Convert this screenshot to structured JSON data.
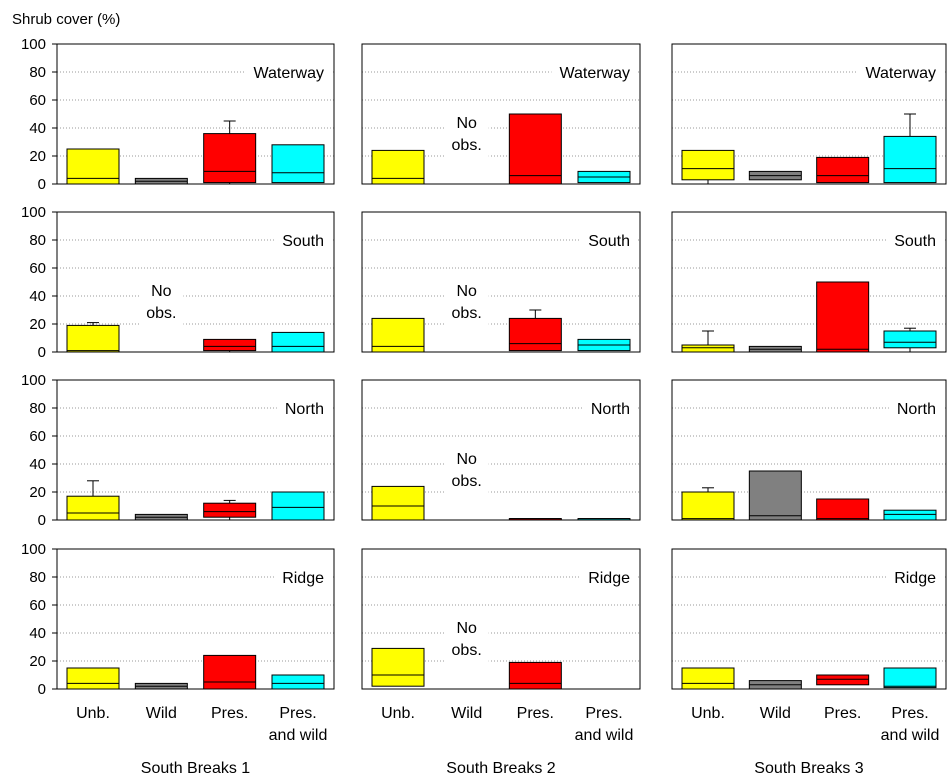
{
  "chart_data": {
    "type": "box",
    "ylabel": "Shrub cover (%)",
    "ylim": [
      0,
      100
    ],
    "yticks": [
      0,
      20,
      40,
      60,
      80,
      100
    ],
    "categories": [
      "Unb.",
      "Wild",
      "Pres.",
      "Pres. and wild"
    ],
    "category_lines": [
      [
        "Unb."
      ],
      [
        "Wild"
      ],
      [
        "Pres."
      ],
      [
        "Pres.",
        "and wild"
      ]
    ],
    "groups": [
      "South Breaks 1",
      "South Breaks 2",
      "South Breaks 3"
    ],
    "aspects": [
      "Waterway",
      "South",
      "North",
      "Ridge"
    ],
    "no_obs_label": [
      "No",
      "obs."
    ],
    "colors": {
      "Unb.": "#ffff00",
      "Wild": "#808080",
      "Pres.": "#ff0000",
      "Pres. and wild": "#00ffff"
    },
    "panels": [
      {
        "group": "South Breaks 1",
        "aspect": "Waterway",
        "boxes": [
          {
            "category": "Unb.",
            "q1": 0,
            "median": 4,
            "q3": 25
          },
          {
            "category": "Wild",
            "q1": 0,
            "median": 2,
            "q3": 4
          },
          {
            "category": "Pres.",
            "q1": 1,
            "median": 9,
            "q3": 36,
            "whisker_low": 0,
            "whisker_high": 45
          },
          {
            "category": "Pres. and wild",
            "q1": 1,
            "median": 8,
            "q3": 28
          }
        ]
      },
      {
        "group": "South Breaks 2",
        "aspect": "Waterway",
        "boxes": [
          {
            "category": "Unb.",
            "q1": 0,
            "median": 4,
            "q3": 24
          },
          {
            "category": "Wild",
            "no_obs": true
          },
          {
            "category": "Pres.",
            "q1": 0,
            "median": 6,
            "q3": 50
          },
          {
            "category": "Pres. and wild",
            "q1": 1,
            "median": 5,
            "q3": 9
          }
        ]
      },
      {
        "group": "South Breaks 3",
        "aspect": "Waterway",
        "boxes": [
          {
            "category": "Unb.",
            "q1": 3,
            "median": 11,
            "q3": 24,
            "whisker_low": 0
          },
          {
            "category": "Wild",
            "q1": 3,
            "median": 6,
            "q3": 9
          },
          {
            "category": "Pres.",
            "q1": 1,
            "median": 6,
            "q3": 19
          },
          {
            "category": "Pres. and wild",
            "q1": 1,
            "median": 11,
            "q3": 34,
            "whisker_high": 50
          }
        ]
      },
      {
        "group": "South Breaks 1",
        "aspect": "South",
        "boxes": [
          {
            "category": "Unb.",
            "q1": 0,
            "median": 1,
            "q3": 19,
            "whisker_high": 21
          },
          {
            "category": "Wild",
            "no_obs": true
          },
          {
            "category": "Pres.",
            "q1": 1,
            "median": 4,
            "q3": 9,
            "whisker_low": 0
          },
          {
            "category": "Pres. and wild",
            "q1": 0,
            "median": 4,
            "q3": 14
          }
        ]
      },
      {
        "group": "South Breaks 2",
        "aspect": "South",
        "boxes": [
          {
            "category": "Unb.",
            "q1": 0,
            "median": 4,
            "q3": 24
          },
          {
            "category": "Wild",
            "no_obs": true
          },
          {
            "category": "Pres.",
            "q1": 1,
            "median": 6,
            "q3": 24,
            "whisker_high": 30
          },
          {
            "category": "Pres. and wild",
            "q1": 1,
            "median": 5,
            "q3": 9
          }
        ]
      },
      {
        "group": "South Breaks 3",
        "aspect": "South",
        "boxes": [
          {
            "category": "Unb.",
            "q1": 0,
            "median": 3,
            "q3": 5,
            "whisker_high": 15
          },
          {
            "category": "Wild",
            "q1": 0,
            "median": 2,
            "q3": 4
          },
          {
            "category": "Pres.",
            "q1": 0,
            "median": 2,
            "q3": 50
          },
          {
            "category": "Pres. and wild",
            "q1": 3,
            "median": 7,
            "q3": 15,
            "whisker_low": 0,
            "whisker_high": 17
          }
        ]
      },
      {
        "group": "South Breaks 1",
        "aspect": "North",
        "boxes": [
          {
            "category": "Unb.",
            "q1": 0,
            "median": 5,
            "q3": 17,
            "whisker_high": 28
          },
          {
            "category": "Wild",
            "q1": 0,
            "median": 2,
            "q3": 4
          },
          {
            "category": "Pres.",
            "q1": 2,
            "median": 6,
            "q3": 12,
            "whisker_low": 0,
            "whisker_high": 14
          },
          {
            "category": "Pres. and wild",
            "q1": 0,
            "median": 9,
            "q3": 20
          }
        ]
      },
      {
        "group": "South Breaks 2",
        "aspect": "North",
        "boxes": [
          {
            "category": "Unb.",
            "q1": 0,
            "median": 10,
            "q3": 24
          },
          {
            "category": "Wild",
            "no_obs": true
          },
          {
            "category": "Pres.",
            "q1": 0,
            "median": 1,
            "q3": 1
          },
          {
            "category": "Pres. and wild",
            "q1": 0,
            "median": 1,
            "q3": 1
          }
        ]
      },
      {
        "group": "South Breaks 3",
        "aspect": "North",
        "boxes": [
          {
            "category": "Unb.",
            "q1": 0,
            "median": 1,
            "q3": 20,
            "whisker_high": 23
          },
          {
            "category": "Wild",
            "q1": 0,
            "median": 3,
            "q3": 35
          },
          {
            "category": "Pres.",
            "q1": 0,
            "median": 1,
            "q3": 15
          },
          {
            "category": "Pres. and wild",
            "q1": 0,
            "median": 4,
            "q3": 7
          }
        ]
      },
      {
        "group": "South Breaks 1",
        "aspect": "Ridge",
        "boxes": [
          {
            "category": "Unb.",
            "q1": 0,
            "median": 4,
            "q3": 15
          },
          {
            "category": "Wild",
            "q1": 0,
            "median": 2,
            "q3": 4
          },
          {
            "category": "Pres.",
            "q1": 0,
            "median": 5,
            "q3": 24
          },
          {
            "category": "Pres. and wild",
            "q1": 0,
            "median": 4,
            "q3": 10
          }
        ]
      },
      {
        "group": "South Breaks 2",
        "aspect": "Ridge",
        "boxes": [
          {
            "category": "Unb.",
            "q1": 2,
            "median": 10,
            "q3": 29
          },
          {
            "category": "Wild",
            "no_obs": true
          },
          {
            "category": "Pres.",
            "q1": 0,
            "median": 4,
            "q3": 19
          }
        ]
      },
      {
        "group": "South Breaks 3",
        "aspect": "Ridge",
        "boxes": [
          {
            "category": "Unb.",
            "q1": 0,
            "median": 4,
            "q3": 15
          },
          {
            "category": "Wild",
            "q1": 0,
            "median": 3,
            "q3": 6
          },
          {
            "category": "Pres.",
            "q1": 3,
            "median": 7,
            "q3": 10
          },
          {
            "category": "Pres. and wild",
            "q1": 1,
            "median": 2,
            "q3": 15
          }
        ]
      }
    ],
    "grid": true
  }
}
